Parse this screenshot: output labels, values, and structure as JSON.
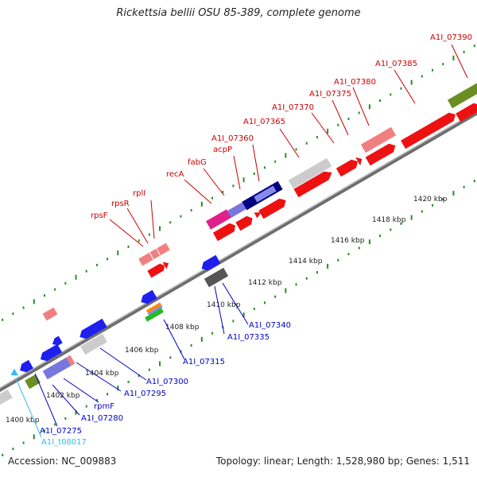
{
  "title": "Rickettsia bellii OSU 85-389, complete genome",
  "footer": {
    "accession": "Accession: NC_009883",
    "summary": "Topology: linear; Length: 1,528,980 bp; Genes: 1,511"
  },
  "colors": {
    "upper_strand_label": "#cc0000",
    "lower_strand_label": "#0000cc",
    "trna_label": "#33bbee",
    "backbone": "#888888",
    "grid_dots": "#2a8a2a"
  },
  "scale_labels": [
    "1400 kbp",
    "1402 kbp",
    "1404 kbp",
    "1406 kbp",
    "1408 kbp",
    "1410 kbp",
    "1412 kbp",
    "1414 kbp",
    "1416 kbp",
    "1418 kbp",
    "1420 kbp"
  ],
  "upper_genes": [
    "rpsF",
    "rpsR",
    "rplI",
    "recA",
    "fabG",
    "acpP",
    "A1I_07360",
    "A1I_07365",
    "A1I_07370",
    "A1I_07375",
    "A1I_07380",
    "A1I_07385",
    "A1I_07390"
  ],
  "lower_genes": [
    "A1I_07275",
    "A1I_07280",
    "rpmF",
    "A1I_07295",
    "A1I_07300",
    "A1I_07315",
    "A1I_07335",
    "A1I_07340"
  ],
  "trna_genes": [
    "A1I_t08017"
  ]
}
